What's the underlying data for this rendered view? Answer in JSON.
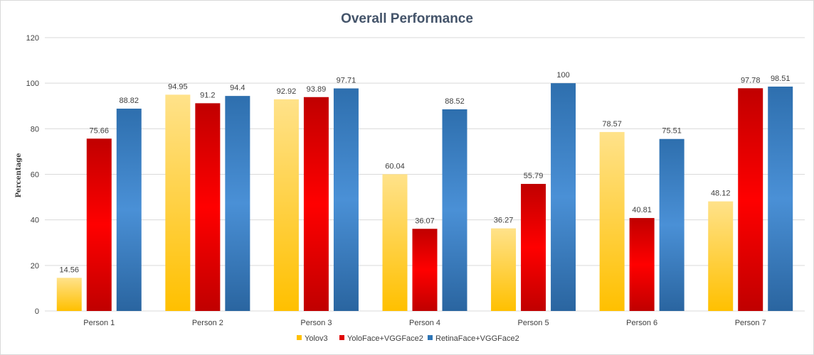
{
  "chart_data": {
    "type": "bar",
    "title": "Overall Performance",
    "ylabel": "Percentage",
    "xlabel": "",
    "ylim": [
      0,
      120
    ],
    "yticks": [
      0,
      20,
      40,
      60,
      80,
      100,
      120
    ],
    "grid": true,
    "legend_position": "bottom",
    "categories": [
      "Person 1",
      "Person 2",
      "Person 3",
      "Person 4",
      "Person 5",
      "Person 6",
      "Person 7"
    ],
    "series": [
      {
        "name": "Yolov3",
        "color": "#ffc000",
        "gradient_top": "#ffe28a",
        "values": [
          14.56,
          94.95,
          92.92,
          60.04,
          36.27,
          78.57,
          48.12
        ],
        "labels": [
          "14.56",
          "94.95",
          "92.92",
          "60.04",
          "36.27",
          "78.57",
          "48.12"
        ]
      },
      {
        "name": "YoloFace+VGGFace2",
        "color": "#e00000",
        "gradient_top": "#c00000",
        "values": [
          75.66,
          91.2,
          93.89,
          36.07,
          55.79,
          40.81,
          97.78
        ],
        "labels": [
          "75.66",
          "91.2",
          "93.89",
          "36.07",
          "55.79",
          "40.81",
          "97.78"
        ]
      },
      {
        "name": "RetinaFace+VGGFace2",
        "color": "#2e75b6",
        "gradient_top": "#3d85c6",
        "values": [
          88.82,
          94.4,
          97.71,
          88.52,
          100,
          75.51,
          98.51
        ],
        "labels": [
          "88.82",
          "94.4",
          "97.71",
          "88.52",
          "100",
          "75.51",
          "98.51"
        ]
      }
    ]
  }
}
